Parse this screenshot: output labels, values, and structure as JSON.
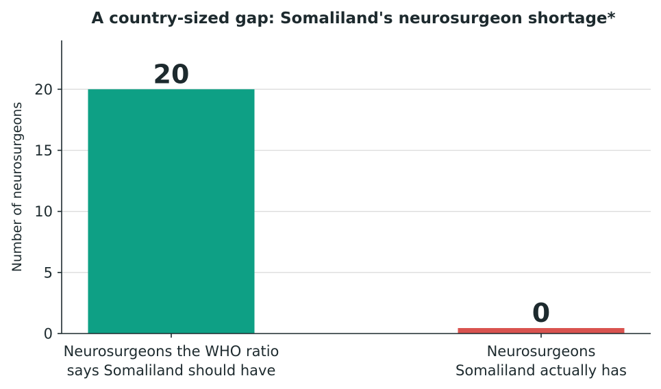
{
  "chart_data": {
    "type": "bar",
    "title": "A country-sized gap: Somaliland's neurosurgeon shortage*",
    "xlabel": "",
    "ylabel": "Number of neurosurgeons",
    "ylim": [
      0,
      24
    ],
    "yticks": [
      0,
      5,
      10,
      15,
      20
    ],
    "grid": true,
    "categories": [
      [
        "Neurosurgeons the WHO ratio",
        "says Somaliland should have"
      ],
      [
        "Neurosurgeons",
        "Somaliland actually has"
      ]
    ],
    "values": [
      20,
      0
    ],
    "data_labels": [
      "20",
      "0"
    ],
    "colors": [
      "#0ea085",
      "#d9534f"
    ]
  }
}
